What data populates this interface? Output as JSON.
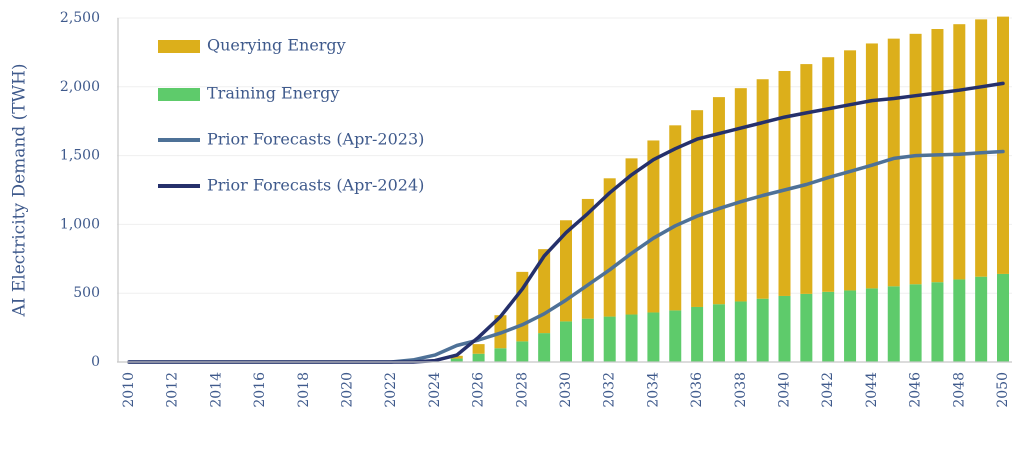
{
  "chart_data": {
    "type": "bar",
    "title": "",
    "xlabel": "",
    "ylabel": "AI Electricity Demand (TWH)",
    "ylim": [
      0,
      2500
    ],
    "yticks": [
      0,
      500,
      1000,
      1500,
      2000,
      2500
    ],
    "ytick_labels": [
      "0",
      "500",
      "1,000",
      "1,500",
      "2,000",
      "2,500"
    ],
    "stacked": true,
    "grid": "horizontal",
    "legend_position": "top-left",
    "categories": [
      2010,
      2011,
      2012,
      2013,
      2014,
      2015,
      2016,
      2017,
      2018,
      2019,
      2020,
      2021,
      2022,
      2023,
      2024,
      2025,
      2026,
      2027,
      2028,
      2029,
      2030,
      2031,
      2032,
      2033,
      2034,
      2035,
      2036,
      2037,
      2038,
      2039,
      2040,
      2041,
      2042,
      2043,
      2044,
      2045,
      2046,
      2047,
      2048,
      2049,
      2050
    ],
    "xtick_labels": [
      "2010",
      "2012",
      "2014",
      "2016",
      "2018",
      "2020",
      "2022",
      "2024",
      "2026",
      "2028",
      "2030",
      "2032",
      "2034",
      "2036",
      "2038",
      "2040",
      "2042",
      "2044",
      "2046",
      "2048",
      "2050"
    ],
    "bar_series": [
      {
        "name": "Training Energy",
        "color": "#5ecb6b",
        "values": [
          0,
          0,
          0,
          0,
          0,
          0,
          0,
          0,
          0,
          0,
          0,
          0,
          0,
          0,
          0,
          25,
          60,
          100,
          150,
          210,
          295,
          315,
          330,
          345,
          360,
          375,
          400,
          420,
          440,
          460,
          480,
          495,
          510,
          520,
          535,
          550,
          565,
          580,
          600,
          620,
          640
        ]
      },
      {
        "name": "Querying Energy",
        "color": "#dcaf1b",
        "values": [
          0,
          0,
          0,
          0,
          0,
          0,
          0,
          0,
          0,
          0,
          0,
          0,
          0,
          0,
          0,
          20,
          70,
          240,
          505,
          610,
          735,
          870,
          1005,
          1135,
          1250,
          1345,
          1430,
          1505,
          1550,
          1595,
          1635,
          1670,
          1705,
          1745,
          1780,
          1800,
          1820,
          1840,
          1855,
          1870,
          1870
        ]
      }
    ],
    "line_series": [
      {
        "name": "Prior Forecasts (Apr-2023)",
        "color": "#4e7197",
        "values": [
          0,
          0,
          0,
          0,
          0,
          0,
          0,
          0,
          0,
          0,
          0,
          0,
          0,
          15,
          50,
          120,
          160,
          210,
          270,
          350,
          450,
          560,
          670,
          790,
          900,
          990,
          1060,
          1115,
          1165,
          1210,
          1250,
          1290,
          1340,
          1385,
          1430,
          1480,
          1500,
          1505,
          1510,
          1520,
          1530
        ]
      },
      {
        "name": "Prior Forecasts (Apr-2024)",
        "color": "#25306b",
        "values": [
          0,
          0,
          0,
          0,
          0,
          0,
          0,
          0,
          0,
          0,
          0,
          0,
          0,
          0,
          10,
          50,
          180,
          330,
          530,
          770,
          940,
          1080,
          1230,
          1360,
          1470,
          1550,
          1620,
          1660,
          1700,
          1740,
          1780,
          1810,
          1840,
          1870,
          1900,
          1915,
          1935,
          1955,
          1975,
          2000,
          2025
        ]
      }
    ]
  },
  "legend": [
    {
      "label": "Querying Energy",
      "kind": "box",
      "color": "#dcaf1b"
    },
    {
      "label": "Training Energy",
      "kind": "box",
      "color": "#5ecb6b"
    },
    {
      "label": "Prior Forecasts (Apr-2023)",
      "kind": "line",
      "color": "#4e7197"
    },
    {
      "label": "Prior Forecasts (Apr-2024)",
      "kind": "line",
      "color": "#25306b"
    }
  ],
  "colors": {
    "axis_text": "#3f5a8c",
    "axis_line": "#c8c8c8",
    "grid": "#efefef"
  }
}
